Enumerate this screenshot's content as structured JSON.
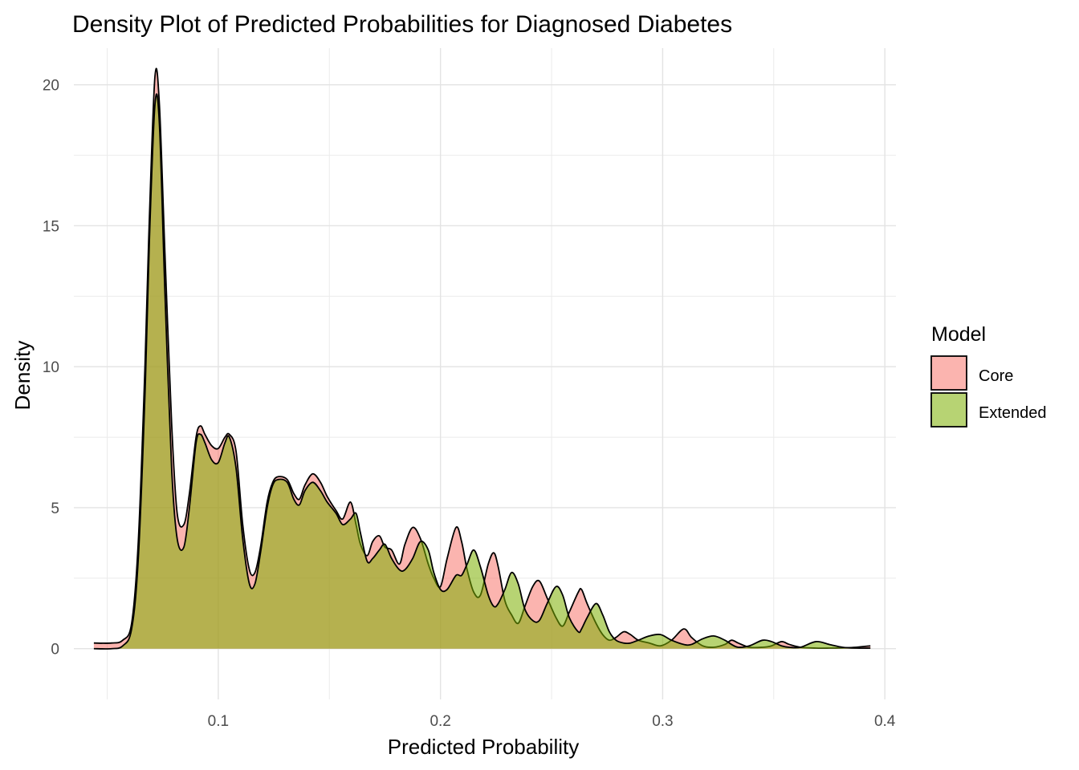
{
  "chart_data": {
    "type": "area",
    "title": "Density Plot of Predicted Probabilities for Diagnosed Diabetes",
    "xlabel": "Predicted Probability",
    "ylabel": "Density",
    "xlim": [
      0.035,
      0.405
    ],
    "ylim": [
      -1.8,
      21.3
    ],
    "x_ticks": [
      0.1,
      0.2,
      0.3,
      0.4
    ],
    "x_tick_labels": [
      "0.1",
      "0.2",
      "0.3",
      "0.4"
    ],
    "y_ticks": [
      0,
      5,
      10,
      15,
      20
    ],
    "y_tick_labels": [
      "0",
      "5",
      "10",
      "15",
      "20"
    ],
    "grid": true,
    "legend": {
      "title": "Model",
      "placement": "right"
    },
    "series": [
      {
        "name": "Core",
        "color": "#f8766d",
        "points": [
          [
            0.044,
            0.2
          ],
          [
            0.052,
            0.2
          ],
          [
            0.057,
            0.3
          ],
          [
            0.061,
            0.9
          ],
          [
            0.064,
            3.8
          ],
          [
            0.067,
            10.0
          ],
          [
            0.069,
            15.3
          ],
          [
            0.0715,
            20.3
          ],
          [
            0.0735,
            19.3
          ],
          [
            0.076,
            14.0
          ],
          [
            0.079,
            8.0
          ],
          [
            0.0815,
            4.8
          ],
          [
            0.0845,
            4.4
          ],
          [
            0.087,
            5.5
          ],
          [
            0.09,
            7.5
          ],
          [
            0.092,
            7.9
          ],
          [
            0.094,
            7.6
          ],
          [
            0.097,
            7.2
          ],
          [
            0.1,
            7.1
          ],
          [
            0.103,
            7.5
          ],
          [
            0.105,
            7.6
          ],
          [
            0.108,
            7.0
          ],
          [
            0.111,
            4.4
          ],
          [
            0.114,
            2.8
          ],
          [
            0.1165,
            2.7
          ],
          [
            0.119,
            3.6
          ],
          [
            0.122,
            5.2
          ],
          [
            0.1245,
            5.9
          ],
          [
            0.127,
            6.1
          ],
          [
            0.131,
            6.0
          ],
          [
            0.134,
            5.5
          ],
          [
            0.1365,
            5.3
          ],
          [
            0.139,
            5.8
          ],
          [
            0.1425,
            6.2
          ],
          [
            0.146,
            5.9
          ],
          [
            0.149,
            5.4
          ],
          [
            0.153,
            4.9
          ],
          [
            0.156,
            4.6
          ],
          [
            0.1595,
            5.2
          ],
          [
            0.162,
            4.4
          ],
          [
            0.164,
            3.7
          ],
          [
            0.167,
            3.3
          ],
          [
            0.1695,
            3.8
          ],
          [
            0.1725,
            4.0
          ],
          [
            0.175,
            3.6
          ],
          [
            0.178,
            3.5
          ],
          [
            0.1815,
            3.0
          ],
          [
            0.184,
            3.7
          ],
          [
            0.1875,
            4.3
          ],
          [
            0.191,
            3.9
          ],
          [
            0.1945,
            3.0
          ],
          [
            0.197,
            2.5
          ],
          [
            0.2,
            2.2
          ],
          [
            0.203,
            3.2
          ],
          [
            0.207,
            4.3
          ],
          [
            0.2095,
            3.8
          ],
          [
            0.212,
            2.8
          ],
          [
            0.215,
            2.0
          ],
          [
            0.218,
            1.9
          ],
          [
            0.2215,
            3.0
          ],
          [
            0.224,
            3.4
          ],
          [
            0.226,
            2.9
          ],
          [
            0.229,
            1.7
          ],
          [
            0.232,
            1.2
          ],
          [
            0.235,
            0.9
          ],
          [
            0.238,
            1.5
          ],
          [
            0.2415,
            2.2
          ],
          [
            0.2445,
            2.4
          ],
          [
            0.248,
            1.8
          ],
          [
            0.252,
            1.1
          ],
          [
            0.255,
            0.8
          ],
          [
            0.258,
            1.3
          ],
          [
            0.262,
            2.0
          ],
          [
            0.2635,
            2.1
          ],
          [
            0.266,
            1.6
          ],
          [
            0.27,
            0.9
          ],
          [
            0.273,
            0.5
          ],
          [
            0.276,
            0.3
          ],
          [
            0.279,
            0.4
          ],
          [
            0.2825,
            0.6
          ],
          [
            0.2855,
            0.5
          ],
          [
            0.289,
            0.3
          ],
          [
            0.294,
            0.2
          ],
          [
            0.299,
            0.1
          ],
          [
            0.304,
            0.3
          ],
          [
            0.3095,
            0.7
          ],
          [
            0.313,
            0.4
          ],
          [
            0.318,
            0.1
          ],
          [
            0.323,
            0.05
          ],
          [
            0.328,
            0.15
          ],
          [
            0.331,
            0.3
          ],
          [
            0.334,
            0.2
          ],
          [
            0.339,
            0.05
          ],
          [
            0.345,
            0.05
          ],
          [
            0.349,
            0.1
          ],
          [
            0.3535,
            0.25
          ],
          [
            0.357,
            0.15
          ],
          [
            0.362,
            0.05
          ],
          [
            0.369,
            0.02
          ],
          [
            0.375,
            0.02
          ],
          [
            0.381,
            0.03
          ],
          [
            0.387,
            0.05
          ],
          [
            0.3935,
            0.1
          ]
        ]
      },
      {
        "name": "Extended",
        "color": "#7cae00",
        "points": [
          [
            0.044,
            0.0
          ],
          [
            0.052,
            0.0
          ],
          [
            0.057,
            0.1
          ],
          [
            0.061,
            0.7
          ],
          [
            0.064,
            3.2
          ],
          [
            0.067,
            9.0
          ],
          [
            0.069,
            14.5
          ],
          [
            0.0715,
            19.3
          ],
          [
            0.0735,
            18.6
          ],
          [
            0.076,
            12.6
          ],
          [
            0.079,
            6.4
          ],
          [
            0.0815,
            3.9
          ],
          [
            0.0845,
            3.6
          ],
          [
            0.087,
            5.0
          ],
          [
            0.09,
            7.3
          ],
          [
            0.092,
            7.6
          ],
          [
            0.094,
            7.3
          ],
          [
            0.097,
            6.7
          ],
          [
            0.1,
            6.6
          ],
          [
            0.103,
            7.3
          ],
          [
            0.105,
            7.5
          ],
          [
            0.108,
            6.4
          ],
          [
            0.111,
            3.9
          ],
          [
            0.114,
            2.3
          ],
          [
            0.1165,
            2.3
          ],
          [
            0.119,
            3.4
          ],
          [
            0.122,
            5.0
          ],
          [
            0.1245,
            5.8
          ],
          [
            0.127,
            6.0
          ],
          [
            0.131,
            5.9
          ],
          [
            0.134,
            5.3
          ],
          [
            0.1365,
            5.1
          ],
          [
            0.139,
            5.6
          ],
          [
            0.1425,
            5.9
          ],
          [
            0.146,
            5.6
          ],
          [
            0.149,
            5.2
          ],
          [
            0.153,
            4.8
          ],
          [
            0.156,
            4.4
          ],
          [
            0.1595,
            4.6
          ],
          [
            0.162,
            4.8
          ],
          [
            0.164,
            4.1
          ],
          [
            0.167,
            3.1
          ],
          [
            0.1695,
            3.2
          ],
          [
            0.1725,
            3.5
          ],
          [
            0.175,
            3.7
          ],
          [
            0.178,
            3.2
          ],
          [
            0.1815,
            2.8
          ],
          [
            0.184,
            2.8
          ],
          [
            0.1875,
            3.2
          ],
          [
            0.191,
            3.8
          ],
          [
            0.1945,
            3.5
          ],
          [
            0.197,
            2.7
          ],
          [
            0.2,
            2.1
          ],
          [
            0.203,
            2.1
          ],
          [
            0.207,
            2.6
          ],
          [
            0.2095,
            2.6
          ],
          [
            0.212,
            3.0
          ],
          [
            0.215,
            3.5
          ],
          [
            0.218,
            2.9
          ],
          [
            0.2215,
            1.9
          ],
          [
            0.224,
            1.5
          ],
          [
            0.226,
            1.6
          ],
          [
            0.229,
            2.1
          ],
          [
            0.232,
            2.7
          ],
          [
            0.235,
            2.3
          ],
          [
            0.238,
            1.4
          ],
          [
            0.2415,
            1.0
          ],
          [
            0.2445,
            1.0
          ],
          [
            0.248,
            1.6
          ],
          [
            0.252,
            2.2
          ],
          [
            0.255,
            1.9
          ],
          [
            0.258,
            1.1
          ],
          [
            0.262,
            0.6
          ],
          [
            0.2635,
            0.7
          ],
          [
            0.266,
            1.1
          ],
          [
            0.27,
            1.6
          ],
          [
            0.273,
            1.2
          ],
          [
            0.276,
            0.6
          ],
          [
            0.279,
            0.3
          ],
          [
            0.2825,
            0.2
          ],
          [
            0.2855,
            0.2
          ],
          [
            0.289,
            0.3
          ],
          [
            0.294,
            0.45
          ],
          [
            0.299,
            0.5
          ],
          [
            0.304,
            0.3
          ],
          [
            0.3095,
            0.15
          ],
          [
            0.313,
            0.15
          ],
          [
            0.318,
            0.35
          ],
          [
            0.323,
            0.45
          ],
          [
            0.328,
            0.3
          ],
          [
            0.331,
            0.15
          ],
          [
            0.334,
            0.05
          ],
          [
            0.339,
            0.1
          ],
          [
            0.345,
            0.3
          ],
          [
            0.349,
            0.25
          ],
          [
            0.3535,
            0.1
          ],
          [
            0.357,
            0.05
          ],
          [
            0.362,
            0.05
          ],
          [
            0.369,
            0.25
          ],
          [
            0.375,
            0.15
          ],
          [
            0.381,
            0.05
          ],
          [
            0.387,
            0.02
          ],
          [
            0.3935,
            0.02
          ]
        ]
      }
    ]
  }
}
